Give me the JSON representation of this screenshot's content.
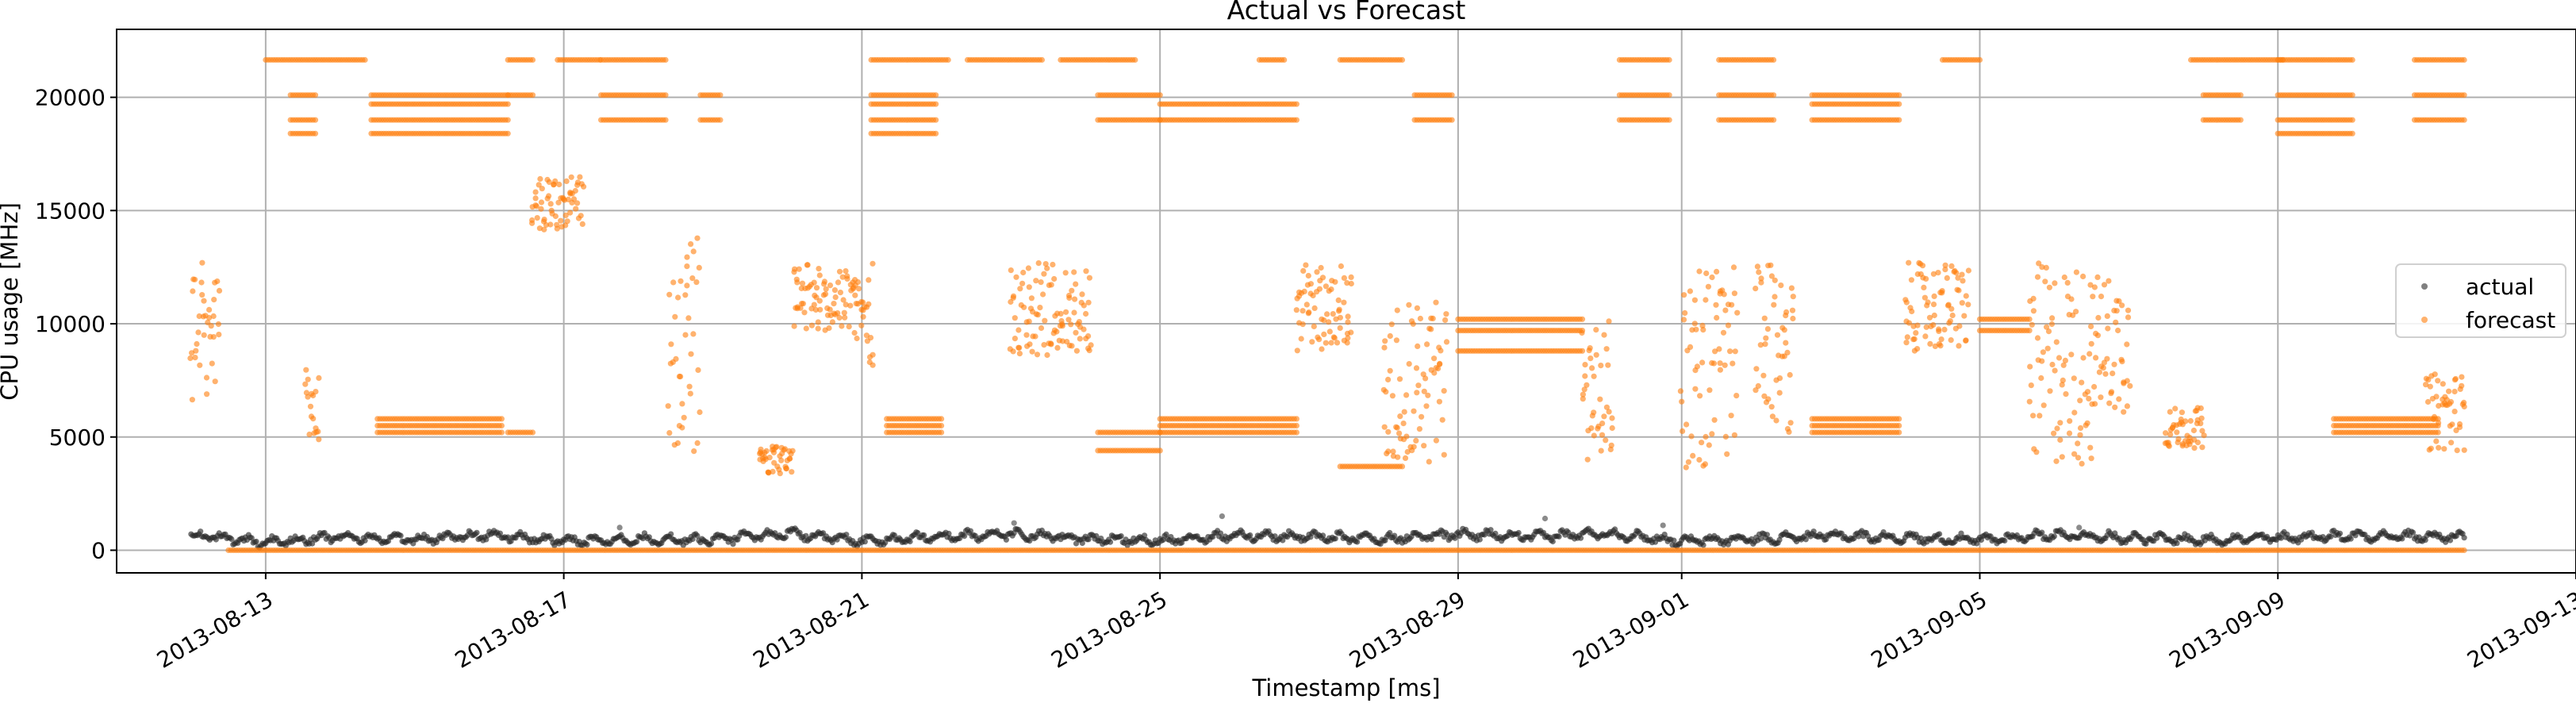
{
  "chart_data": {
    "type": "scatter",
    "title": "Actual vs Forecast",
    "xlabel": "Timestamp [ms]",
    "ylabel": "CPU usage [MHz]",
    "xlim": [
      "2013-08-11T00:00",
      "2013-09-13T00:00"
    ],
    "ylim": [
      -1000,
      23000
    ],
    "grid": true,
    "legend_position": "right",
    "x_ticks": [
      "2013-08-13",
      "2013-08-17",
      "2013-08-21",
      "2013-08-25",
      "2013-08-29",
      "2013-09-01",
      "2013-09-05",
      "2013-09-09",
      "2013-09-13"
    ],
    "y_ticks": [
      0,
      5000,
      10000,
      15000,
      20000
    ],
    "colors": {
      "actual": "#2b2b2b",
      "forecast": "#ff7f0e",
      "grid": "#b0b0b0"
    },
    "series": [
      {
        "name": "actual",
        "color": "#2b2b2b",
        "x_range": [
          "2013-08-12T00:00",
          "2013-09-11T12:00"
        ],
        "baseline": [
          [
            "2013-08-12",
            650
          ],
          [
            "2013-08-13",
            350
          ],
          [
            "2013-08-14",
            600
          ],
          [
            "2013-08-15",
            450
          ],
          [
            "2013-08-16",
            700
          ],
          [
            "2013-08-17",
            400
          ],
          [
            "2013-08-18",
            500
          ],
          [
            "2013-08-19",
            450
          ],
          [
            "2013-08-20",
            750
          ],
          [
            "2013-08-21",
            400
          ],
          [
            "2013-08-22",
            600
          ],
          [
            "2013-08-23",
            700
          ],
          [
            "2013-08-24",
            500
          ],
          [
            "2013-08-25",
            450
          ],
          [
            "2013-08-26",
            650
          ],
          [
            "2013-08-27",
            600
          ],
          [
            "2013-08-28",
            500
          ],
          [
            "2013-08-29",
            700
          ],
          [
            "2013-08-30",
            600
          ],
          [
            "2013-08-31",
            750
          ],
          [
            "2013-09-01",
            400
          ],
          [
            "2013-09-02",
            500
          ],
          [
            "2013-09-03",
            650
          ],
          [
            "2013-09-04",
            550
          ],
          [
            "2013-09-05",
            450
          ],
          [
            "2013-09-06",
            700
          ],
          [
            "2013-09-07",
            550
          ],
          [
            "2013-09-08",
            450
          ],
          [
            "2013-09-09",
            550
          ],
          [
            "2013-09-10",
            650
          ],
          [
            "2013-09-11",
            600
          ]
        ],
        "outliers": [
          [
            "2013-08-25T20:00",
            1500
          ],
          [
            "2013-08-30T04:00",
            1400
          ],
          [
            "2013-08-23T01:00",
            1200
          ],
          [
            "2013-08-31T18:00",
            1100
          ],
          [
            "2013-08-17T18:00",
            1000
          ],
          [
            "2013-09-06T08:00",
            1000
          ]
        ]
      },
      {
        "name": "forecast",
        "color": "#ff7f0e",
        "levels": [
          0,
          3700,
          5200,
          5500,
          5800,
          8800,
          9700,
          10200,
          12500,
          18400,
          19000,
          19700,
          20100,
          21650
        ],
        "segments": [
          {
            "start": "2013-08-12T00:00",
            "end": "2013-08-12T09:00",
            "range": [
              6000,
              12700
            ]
          },
          {
            "start": "2013-08-13T00:00",
            "end": "2013-08-14T08:00",
            "levels": [
              21650
            ]
          },
          {
            "start": "2013-08-13T08:00",
            "end": "2013-08-13T16:00",
            "levels": [
              20100,
              19000,
              18400
            ]
          },
          {
            "start": "2013-08-13T13:00",
            "end": "2013-08-13T17:00",
            "range": [
              4500,
              8000
            ]
          },
          {
            "start": "2013-08-14T10:00",
            "end": "2013-08-16T06:00",
            "levels": [
              20100,
              19700,
              19000,
              18400
            ]
          },
          {
            "start": "2013-08-14T12:00",
            "end": "2013-08-16T04:00",
            "levels": [
              5200,
              5500,
              5800
            ]
          },
          {
            "start": "2013-08-16T06:00",
            "end": "2013-08-16T14:00",
            "levels": [
              21650,
              20100,
              5200
            ]
          },
          {
            "start": "2013-08-16T14:00",
            "end": "2013-08-17T06:00",
            "range": [
              14000,
              16500
            ]
          },
          {
            "start": "2013-08-16T22:00",
            "end": "2013-08-17T12:00",
            "levels": [
              21650
            ]
          },
          {
            "start": "2013-08-17T12:00",
            "end": "2013-08-18T09:00",
            "levels": [
              21650,
              20100,
              19000
            ]
          },
          {
            "start": "2013-08-18T10:00",
            "end": "2013-08-18T20:00",
            "range": [
              4000,
              14000
            ]
          },
          {
            "start": "2013-08-18T20:00",
            "end": "2013-08-19T03:00",
            "levels": [
              20100,
              19000
            ]
          },
          {
            "start": "2013-08-19T15:00",
            "end": "2013-08-20T02:00",
            "range": [
              3300,
              4600
            ]
          },
          {
            "start": "2013-08-20T02:00",
            "end": "2013-08-20T22:00",
            "range": [
              9700,
              12600
            ]
          },
          {
            "start": "2013-08-20T22:00",
            "end": "2013-08-21T04:00",
            "range": [
              8000,
              12700
            ]
          },
          {
            "start": "2013-08-21T03:00",
            "end": "2013-08-22T04:00",
            "levels": [
              21650
            ]
          },
          {
            "start": "2013-08-21T03:00",
            "end": "2013-08-22T00:00",
            "levels": [
              20100,
              19700,
              19000,
              18400
            ]
          },
          {
            "start": "2013-08-21T08:00",
            "end": "2013-08-22T02:00",
            "levels": [
              5200,
              5500,
              5800
            ]
          },
          {
            "start": "2013-08-22T10:00",
            "end": "2013-08-23T10:00",
            "levels": [
              21650
            ]
          },
          {
            "start": "2013-08-23T00:00",
            "end": "2013-08-24T02:00",
            "range": [
              8600,
              12700
            ]
          },
          {
            "start": "2013-08-23T16:00",
            "end": "2013-08-24T16:00",
            "levels": [
              21650
            ]
          },
          {
            "start": "2013-08-24T04:00",
            "end": "2013-08-25T00:00",
            "levels": [
              20100,
              19000,
              5200,
              4400
            ]
          },
          {
            "start": "2013-08-25T00:00",
            "end": "2013-08-26T20:00",
            "levels": [
              19700,
              19000,
              5200,
              5500,
              5800
            ]
          },
          {
            "start": "2013-08-26T08:00",
            "end": "2013-08-26T16:00",
            "levels": [
              21650
            ]
          },
          {
            "start": "2013-08-26T20:00",
            "end": "2013-08-27T14:00",
            "range": [
              8800,
              12600
            ]
          },
          {
            "start": "2013-08-27T10:00",
            "end": "2013-08-28T06:00",
            "levels": [
              21650,
              3700
            ]
          },
          {
            "start": "2013-08-28T00:00",
            "end": "2013-08-28T20:00",
            "range": [
              3700,
              11200
            ]
          },
          {
            "start": "2013-08-28T10:00",
            "end": "2013-08-28T22:00",
            "levels": [
              20100,
              19000
            ]
          },
          {
            "start": "2013-08-29T00:00",
            "end": "2013-08-30T16:00",
            "levels": [
              10200,
              9700,
              8800
            ]
          },
          {
            "start": "2013-08-30T16:00",
            "end": "2013-08-31T02:00",
            "range": [
              3700,
              10200
            ]
          },
          {
            "start": "2013-08-31T04:00",
            "end": "2013-08-31T20:00",
            "levels": [
              21650,
              20100,
              19000
            ]
          },
          {
            "start": "2013-09-01T00:00",
            "end": "2013-09-01T18:00",
            "range": [
              3600,
              12700
            ]
          },
          {
            "start": "2013-09-01T12:00",
            "end": "2013-09-02T06:00",
            "levels": [
              21650,
              20100,
              19000
            ]
          },
          {
            "start": "2013-09-02T00:00",
            "end": "2013-09-02T12:00",
            "range": [
              5200,
              12600
            ]
          },
          {
            "start": "2013-09-02T18:00",
            "end": "2013-09-03T22:00",
            "levels": [
              20100,
              19700,
              19000,
              5200,
              5500,
              5800
            ]
          },
          {
            "start": "2013-09-04T00:00",
            "end": "2013-09-04T20:00",
            "range": [
              8800,
              12700
            ]
          },
          {
            "start": "2013-09-04T12:00",
            "end": "2013-09-05T00:00",
            "levels": [
              21650
            ]
          },
          {
            "start": "2013-09-05T00:00",
            "end": "2013-09-05T16:00",
            "levels": [
              10200,
              9700
            ]
          },
          {
            "start": "2013-09-05T16:00",
            "end": "2013-09-06T12:00",
            "range": [
              3700,
              12700
            ]
          },
          {
            "start": "2013-09-06T12:00",
            "end": "2013-09-07T00:00",
            "range": [
              6000,
              12200
            ]
          },
          {
            "start": "2013-09-07T12:00",
            "end": "2013-09-08T00:00",
            "range": [
              4500,
              6300
            ]
          },
          {
            "start": "2013-09-07T20:00",
            "end": "2013-09-09T02:00",
            "levels": [
              21650
            ]
          },
          {
            "start": "2013-09-08T00:00",
            "end": "2013-09-08T12:00",
            "levels": [
              20100,
              19000
            ]
          },
          {
            "start": "2013-09-09T00:00",
            "end": "2013-09-10T00:00",
            "levels": [
              21650,
              20100,
              19000,
              18400
            ]
          },
          {
            "start": "2013-09-09T18:00",
            "end": "2013-09-11T04:00",
            "levels": [
              5200,
              5500,
              5800
            ]
          },
          {
            "start": "2013-09-10T20:00",
            "end": "2013-09-11T12:00",
            "levels": [
              21650,
              20100,
              19000
            ]
          },
          {
            "start": "2013-09-11T00:00",
            "end": "2013-09-11T12:00",
            "range": [
              4400,
              7800
            ]
          }
        ]
      }
    ]
  }
}
